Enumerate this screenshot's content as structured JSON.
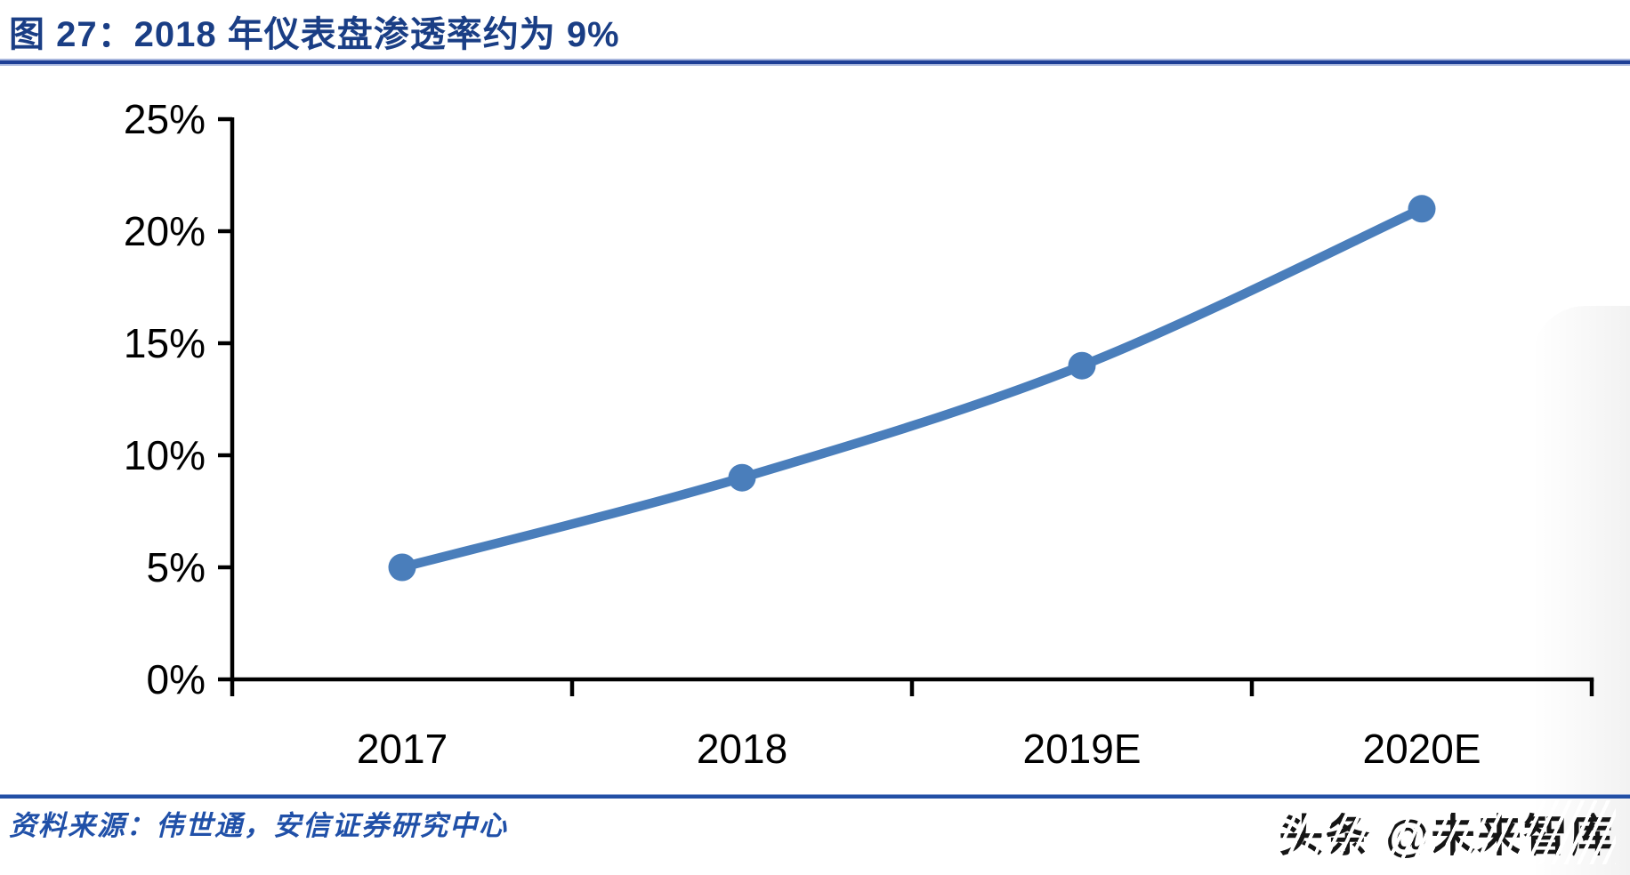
{
  "figure": {
    "title": "图 27：2018 年仪表盘渗透率约为 9%",
    "source_label": "资料来源：伟世通，安信证券研究中心",
    "watermark": "头条 @未来智库"
  },
  "colors": {
    "title_blue": "#1a3e85",
    "rule_blue": "#2350a5",
    "series_blue": "#4a7ebb",
    "axis_black": "#000000",
    "source_blue": "#2050a8",
    "watermark_black": "#151515"
  },
  "chart_data": {
    "type": "line",
    "title": "2018 年仪表盘渗透率约为 9%",
    "categories": [
      "2017",
      "2018",
      "2019E",
      "2020E"
    ],
    "series": [
      {
        "name": "仪表盘渗透率",
        "values": [
          5,
          9,
          14,
          21
        ]
      }
    ],
    "unit": "%",
    "xlabel": "",
    "ylabel": "",
    "ylim": [
      0,
      25
    ],
    "ytick_step": 5,
    "ytick_labels": [
      "0%",
      "5%",
      "10%",
      "15%",
      "20%",
      "25%"
    ],
    "grid": false,
    "legend": false,
    "smooth": true,
    "marker": "circle",
    "line_color": "#4a7ebb"
  }
}
